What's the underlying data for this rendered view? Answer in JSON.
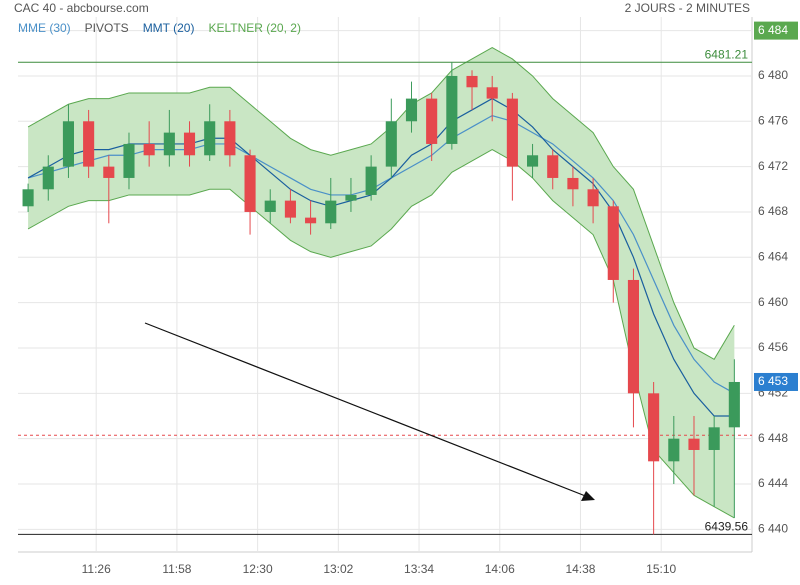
{
  "chart_data": {
    "type": "candlestick",
    "title": "CAC 40 - abcbourse.com",
    "subtitle": "2 JOURS - 2 MINUTES",
    "x": [
      659,
      667,
      675,
      683,
      691,
      699,
      707,
      715,
      723,
      731,
      739,
      747,
      755,
      763,
      771,
      779,
      787,
      795,
      803,
      811,
      819,
      827,
      835,
      843,
      851,
      859,
      867,
      875,
      883,
      891,
      899,
      907,
      915,
      923,
      931,
      939
    ],
    "open": [
      6468.5,
      6470,
      6472,
      6476,
      6472,
      6471,
      6474,
      6473,
      6475,
      6473,
      6476,
      6473,
      6468,
      6469,
      6467.5,
      6467,
      6469,
      6469.5,
      6472,
      6476,
      6478,
      6474,
      6480,
      6479,
      6478,
      6472,
      6473,
      6471,
      6470,
      6468.5,
      6462,
      6452,
      6446,
      6448,
      6447,
      6449
    ],
    "high": [
      6470.5,
      6473,
      6477.5,
      6477,
      6473,
      6475,
      6476,
      6477,
      6476,
      6477.5,
      6477,
      6473.5,
      6470,
      6470,
      6469,
      6471,
      6471,
      6473,
      6478,
      6479.5,
      6478.5,
      6481.21,
      6480.5,
      6480,
      6478.5,
      6474,
      6473.5,
      6472,
      6471,
      6469,
      6463,
      6453,
      6450,
      6450,
      6450,
      6455
    ],
    "low": [
      6468,
      6469,
      6471,
      6471,
      6467,
      6470,
      6472,
      6472,
      6472,
      6472.5,
      6472,
      6466,
      6467,
      6467,
      6466,
      6466.5,
      6468,
      6469,
      6471,
      6475,
      6472.5,
      6473.5,
      6477,
      6476,
      6469,
      6471,
      6470,
      6468.5,
      6467,
      6460,
      6449,
      6439.56,
      6444,
      6443,
      6442,
      6441
    ],
    "close": [
      6470,
      6472,
      6476,
      6472,
      6471,
      6474,
      6473,
      6475,
      6473,
      6476,
      6473,
      6468,
      6469,
      6467.5,
      6467,
      6469,
      6469.5,
      6472,
      6476,
      6478,
      6474,
      6480,
      6479,
      6478,
      6472,
      6473,
      6471,
      6470,
      6468.5,
      6462,
      6452,
      6446,
      6448,
      6447,
      6449,
      6453
    ],
    "up_color": "#3b9a5b",
    "down_color": "#e5484d",
    "series": [
      {
        "name": "MME (30)",
        "color": "#4a90c8",
        "values": [
          6471,
          6471.5,
          6472,
          6472.5,
          6473,
          6473,
          6473.5,
          6473.5,
          6473.5,
          6474,
          6474,
          6473,
          6472,
          6471,
          6470,
          6469.5,
          6469.5,
          6470,
          6471,
          6472,
          6473,
          6474.5,
          6475.5,
          6476.5,
          6476,
          6475,
          6474,
          6472.5,
          6471,
          6469,
          6466,
          6462,
          6458,
          6455,
          6453,
          6452
        ]
      },
      {
        "name": "MMT (20)",
        "color": "#1a5f9e",
        "values": [
          6471,
          6472,
          6473,
          6473.5,
          6473.5,
          6474,
          6474,
          6474,
          6474,
          6474.5,
          6474.5,
          6473,
          6471.5,
          6470,
          6469,
          6468.5,
          6469,
          6469.5,
          6471,
          6473,
          6474,
          6476,
          6477,
          6478,
          6477,
          6475.5,
          6473.5,
          6472,
          6470.5,
          6468,
          6464,
          6459,
          6455,
          6452,
          6450,
          6450
        ]
      }
    ],
    "pivots": {
      "name": "PIVOTS",
      "color": "#e5484d",
      "values": [
        6448.3
      ]
    },
    "keltner": {
      "name": "KELTNER (20, 2)",
      "color": "#5aa84f",
      "fill": "#c9e6c4",
      "upper": [
        6475.5,
        6476.5,
        6477.5,
        6478,
        6478,
        6478.5,
        6478.5,
        6478.5,
        6478.5,
        6479,
        6479,
        6477.5,
        6476,
        6474.5,
        6473.5,
        6473,
        6473.5,
        6474,
        6475.5,
        6477.5,
        6478.5,
        6480.5,
        6481.5,
        6482.5,
        6481.5,
        6480,
        6478,
        6476.5,
        6475,
        6472,
        6470,
        6465,
        6460,
        6456,
        6455,
        6458
      ],
      "lower": [
        6466.5,
        6467.5,
        6468.5,
        6469,
        6469,
        6469.5,
        6469.5,
        6469.5,
        6469.5,
        6470,
        6470,
        6468.5,
        6467,
        6465.5,
        6464.5,
        6464,
        6464.5,
        6465,
        6466.5,
        6468.5,
        6469.5,
        6471.5,
        6472.5,
        6473.5,
        6472.5,
        6471,
        6469,
        6467.5,
        6466,
        6462,
        6454,
        6447,
        6445,
        6443,
        6442,
        6441
      ]
    },
    "levels": [
      {
        "value": 6481.21,
        "color": "#3c8c3c"
      },
      {
        "value": 6439.56,
        "color": "#222222"
      }
    ],
    "last_price": {
      "value": 6453,
      "label": "6 453",
      "color": "#2b7fd0"
    },
    "xlim": [
      655,
      946
    ],
    "ylim": [
      6438,
      6485.2
    ],
    "xticks": [
      {
        "value": 686,
        "label": "11:26"
      },
      {
        "value": 718,
        "label": "11:58"
      },
      {
        "value": 750,
        "label": "12:30"
      },
      {
        "value": 782,
        "label": "13:02"
      },
      {
        "value": 814,
        "label": "13:34"
      },
      {
        "value": 846,
        "label": "14:06"
      },
      {
        "value": 878,
        "label": "14:38"
      },
      {
        "value": 910,
        "label": "15:10"
      }
    ],
    "yticks": [
      {
        "value": 6440,
        "label": "6 440"
      },
      {
        "value": 6444,
        "label": "6 444"
      },
      {
        "value": 6448,
        "label": "6 448"
      },
      {
        "value": 6452,
        "label": "6 452"
      },
      {
        "value": 6456,
        "label": "6 456"
      },
      {
        "value": 6460,
        "label": "6 460"
      },
      {
        "value": 6464,
        "label": "6 464"
      },
      {
        "value": 6468,
        "label": "6 468"
      },
      {
        "value": 6472,
        "label": "6 472"
      },
      {
        "value": 6476,
        "label": "6 476"
      },
      {
        "value": 6480,
        "label": "6 480"
      },
      {
        "value": 6484,
        "label": "6 484"
      }
    ],
    "grid": true
  }
}
